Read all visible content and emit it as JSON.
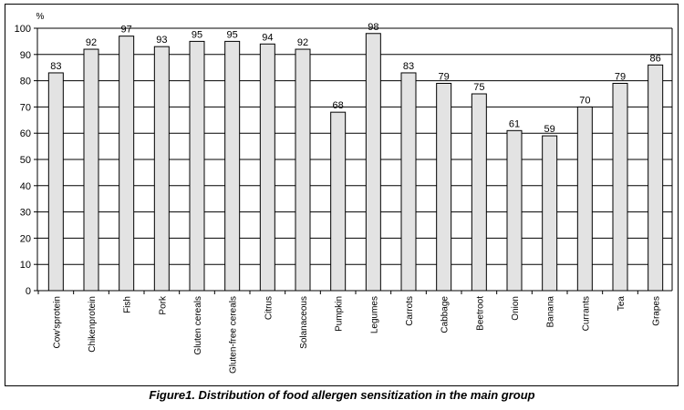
{
  "caption": "Figure1. Distribution of food allergen sensitization in the main group",
  "chart_data": {
    "type": "bar",
    "title": "",
    "xlabel": "",
    "ylabel": "%",
    "ylim": [
      0,
      100
    ],
    "yticks": [
      0,
      10,
      20,
      30,
      40,
      50,
      60,
      70,
      80,
      90,
      100
    ],
    "grid": true,
    "legend": "none",
    "bar_color": "#e3e3e3",
    "categories": [
      "Cow'sprotein",
      "Chikenprotein",
      "Fish",
      "Pork",
      "Gluten cereals",
      "Gluten-free cereals",
      "Citrus",
      "Solanaceous",
      "Pumpkin",
      "Legumes",
      "Carrots",
      "Cabbage",
      "Beetroot",
      "Onion",
      "Banana",
      "Currants",
      "Tea",
      "Grapes"
    ],
    "values": [
      83,
      92,
      97,
      93,
      95,
      95,
      94,
      92,
      68,
      98,
      83,
      79,
      75,
      61,
      59,
      70,
      79,
      86
    ]
  }
}
